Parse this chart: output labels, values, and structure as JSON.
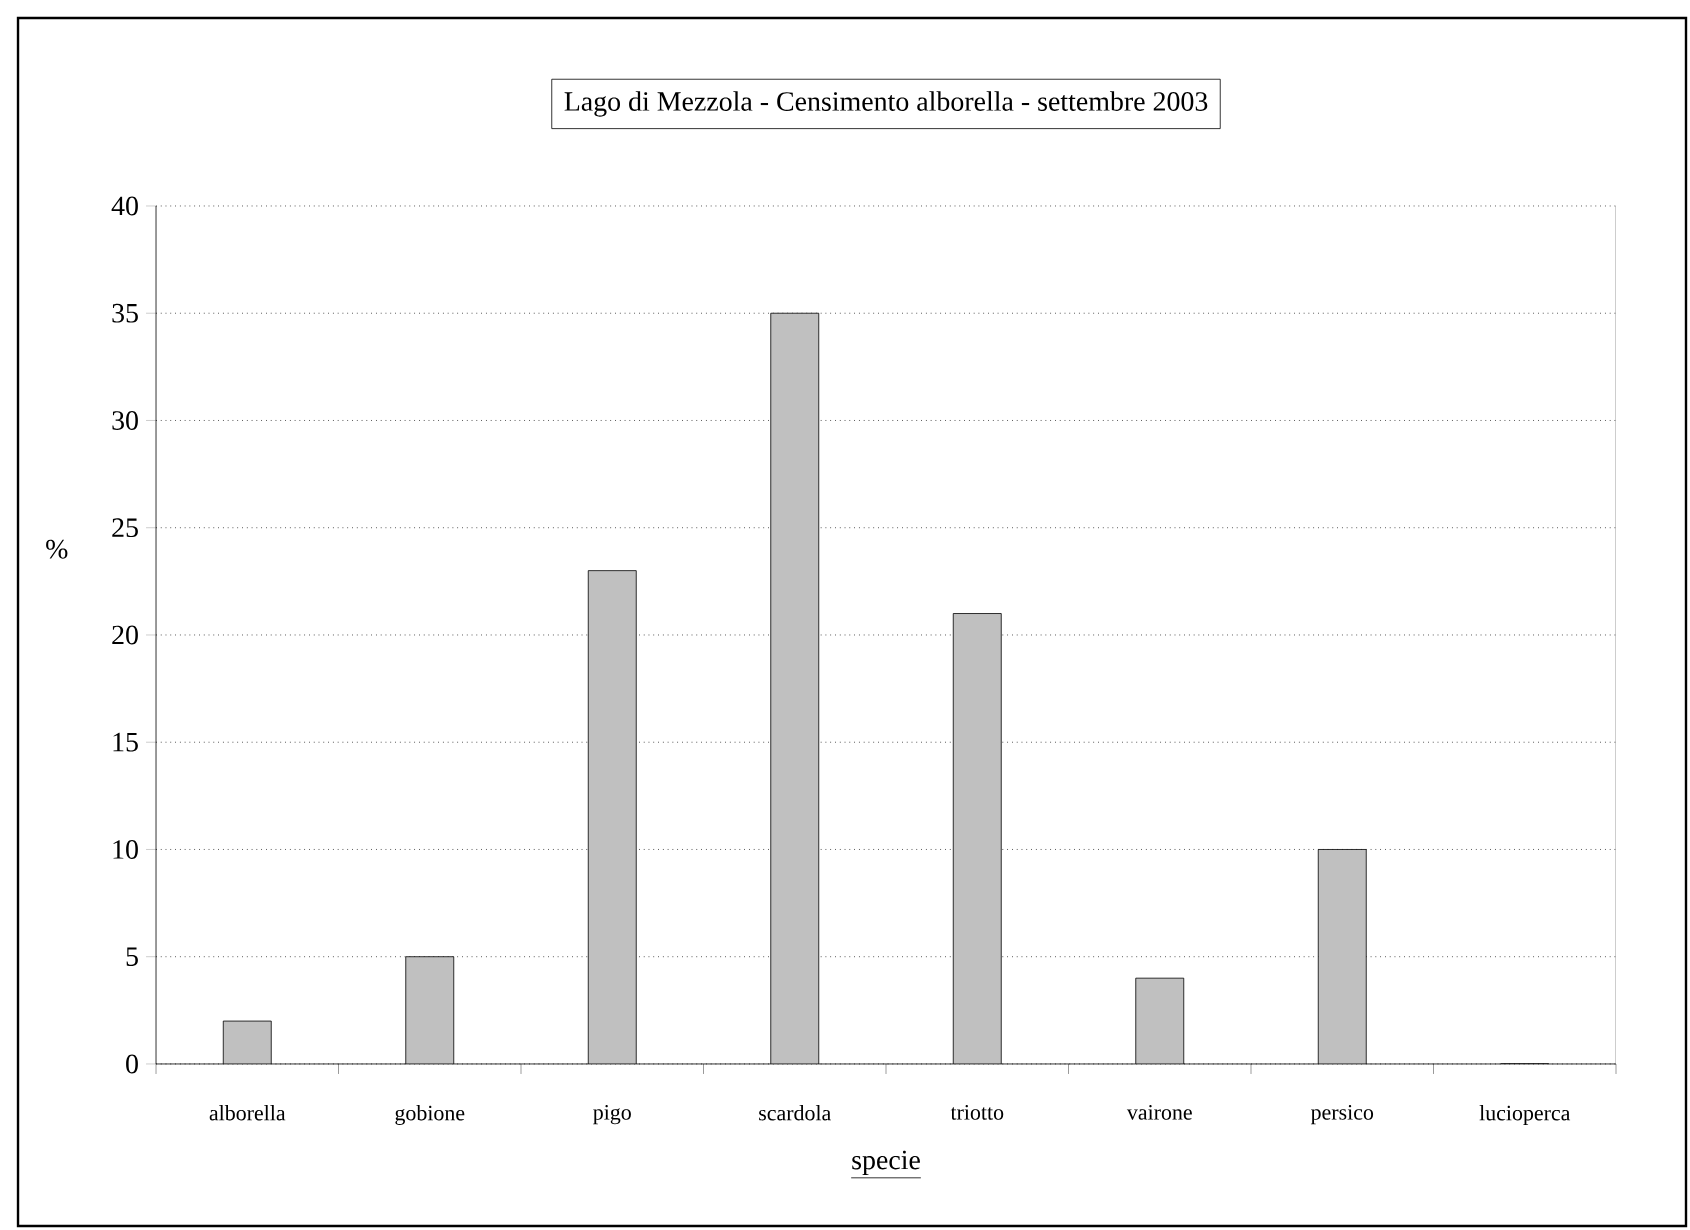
{
  "chart_data": {
    "type": "bar",
    "title": "Lago di Mezzola  -  Censimento alborella  -  settembre 2003",
    "xlabel": "specie",
    "ylabel": "%",
    "categories": [
      "alborella",
      "gobione",
      "pigo",
      "scardola",
      "triotto",
      "vairone",
      "persico",
      "lucioperca"
    ],
    "values": [
      2,
      5,
      23,
      35,
      21,
      4,
      10,
      0
    ],
    "color": "#c0c0c0",
    "ylim": [
      0,
      40
    ],
    "yticks": [
      0,
      5,
      10,
      15,
      20,
      25,
      30,
      35,
      40
    ],
    "grid": "y"
  }
}
